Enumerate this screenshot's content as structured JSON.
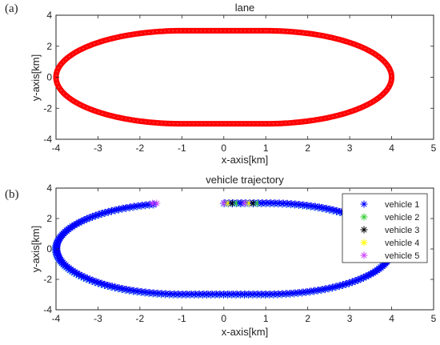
{
  "chart_data": [
    {
      "panel_label": "(a)",
      "type": "line",
      "title": "lane",
      "xlabel": "x-axis[km]",
      "ylabel": "y-axis[km]",
      "xlim": [
        -4,
        5
      ],
      "ylim": [
        -4,
        4
      ],
      "xticks": [
        -4,
        -3,
        -2,
        -1,
        0,
        1,
        2,
        3,
        4,
        5
      ],
      "yticks": [
        -4,
        -2,
        0,
        2,
        4
      ],
      "grid": false,
      "series": [
        {
          "color": "#ff0000",
          "shape": "stadium",
          "straight_x_range": [
            -1,
            1
          ],
          "half_height": 3,
          "x_extent": [
            -4,
            4
          ]
        }
      ]
    },
    {
      "panel_label": "(b)",
      "type": "scatter",
      "title": "vehicle trajectory",
      "xlabel": "x-axis[km]",
      "ylabel": "y-axis[km]",
      "xlim": [
        -4,
        5
      ],
      "ylim": [
        -4,
        4
      ],
      "xticks": [
        -4,
        -3,
        -2,
        -1,
        0,
        1,
        2,
        3,
        4,
        5
      ],
      "yticks": [
        -4,
        -2,
        0,
        2,
        4
      ],
      "grid": false,
      "legend_position": "top-right",
      "marker": "*",
      "path": {
        "shape": "stadium",
        "straight_x_range": [
          -1,
          1
        ],
        "half_height": 3,
        "x_extent": [
          -4,
          4
        ],
        "gap_x_range": [
          -1.6,
          0.0
        ],
        "gap_side": "top"
      },
      "series": [
        {
          "name": "vehicle 1",
          "color": "#0000ff"
        },
        {
          "name": "vehicle 2",
          "color": "#33cc33"
        },
        {
          "name": "vehicle 3",
          "color": "#000000"
        },
        {
          "name": "vehicle 4",
          "color": "#ffff00"
        },
        {
          "name": "vehicle 5",
          "color": "#cc44ff"
        }
      ]
    }
  ]
}
